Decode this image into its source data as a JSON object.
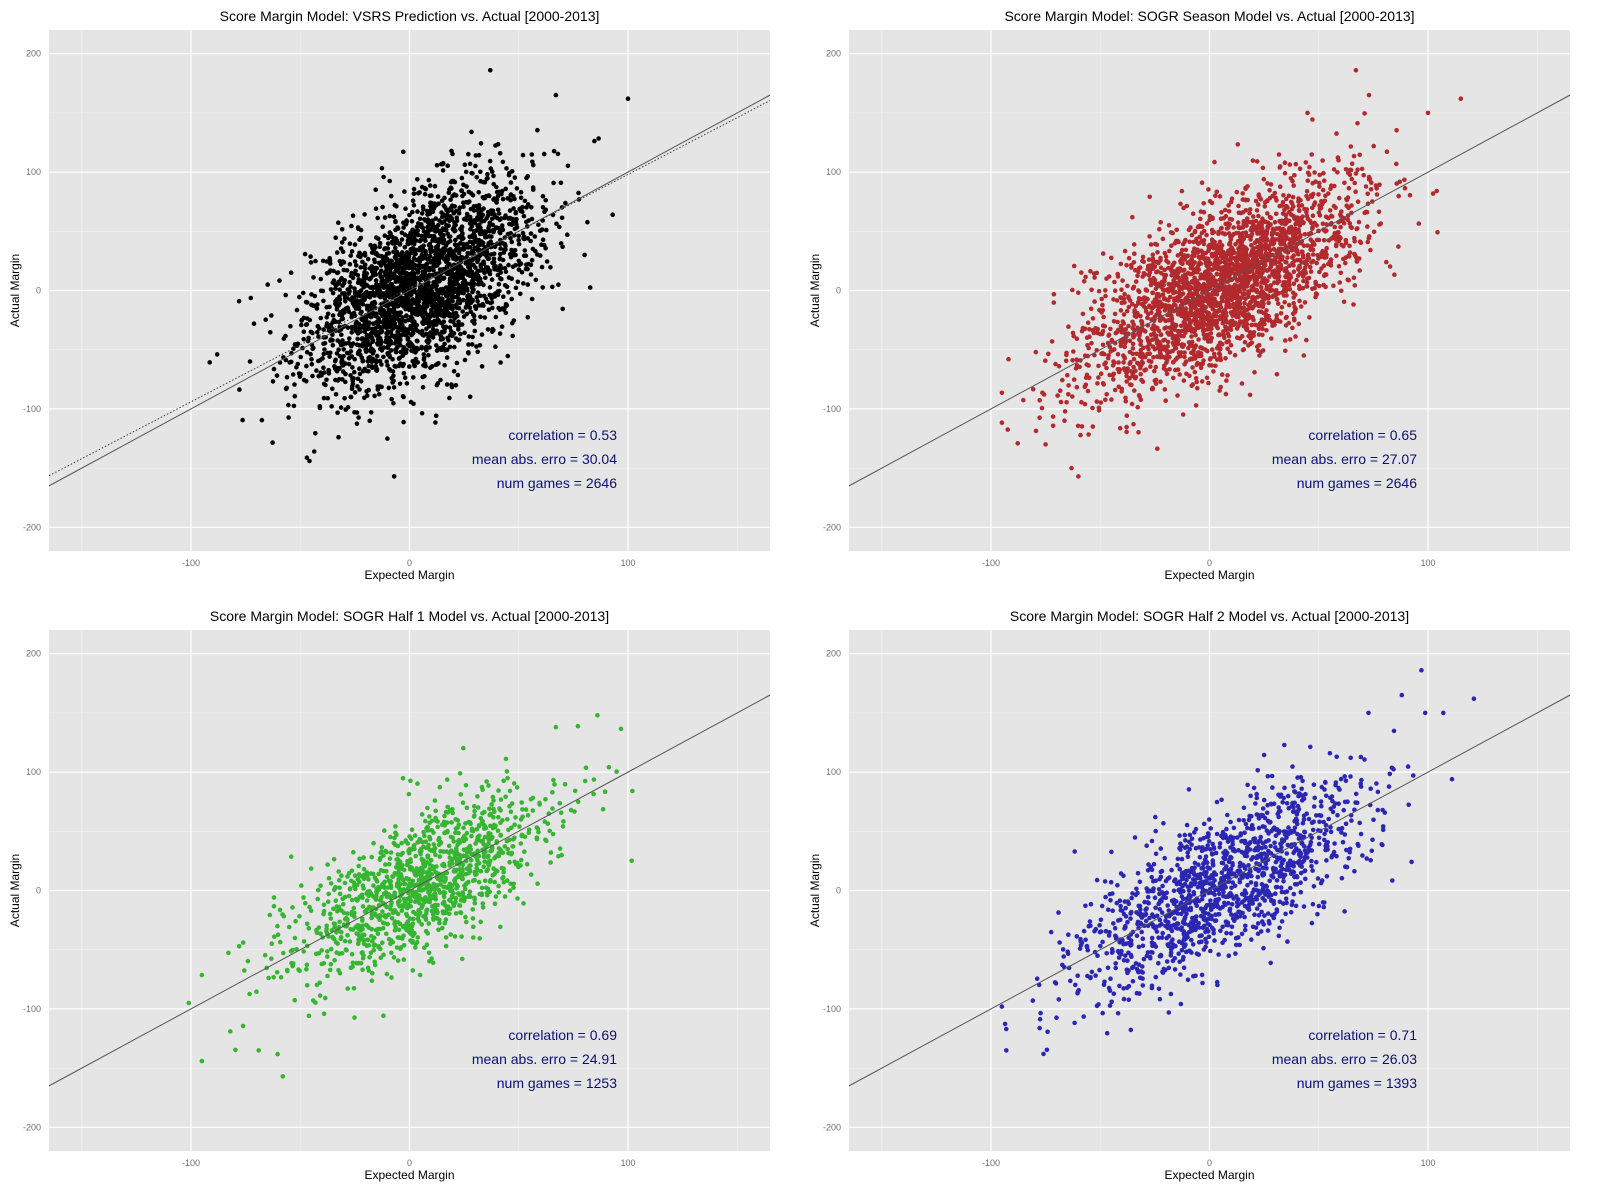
{
  "chart_data": [
    {
      "type": "scatter",
      "title": "Score Margin Model: VSRS Prediction vs. Actual [2000-2013]",
      "xlabel": "Expected Margin",
      "ylabel": "Actual Margin",
      "xlim": [
        -165,
        165
      ],
      "ylim": [
        -220,
        220
      ],
      "xticks": [
        -100,
        0,
        100
      ],
      "yticks": [
        -200,
        -100,
        0,
        100,
        200
      ],
      "grid": true,
      "point_color": "#000000",
      "n_points": 2646,
      "x_sd": 26,
      "y_sd": 43,
      "correlation": 0.53,
      "fit_lines": [
        {
          "style": "solid",
          "color": "#555555",
          "slope": 1.0,
          "intercept": 0
        },
        {
          "style": "dotted",
          "color": "#333333",
          "slope": 0.96,
          "intercept": 2
        }
      ],
      "outliers": [
        [
          37,
          186
        ],
        [
          67,
          165
        ],
        [
          100,
          162
        ],
        [
          -88,
          -54
        ],
        [
          -78,
          -9
        ],
        [
          -7,
          -157
        ],
        [
          -73,
          -60
        ],
        [
          93,
          64
        ]
      ],
      "annotations": {
        "correlation": "0.53",
        "mae": "30.04",
        "games": "2646"
      }
    },
    {
      "type": "scatter",
      "title": "Score Margin Model: SOGR Season Model vs. Actual [2000-2013]",
      "xlabel": "Expected Margin",
      "ylabel": "Actual Margin",
      "xlim": [
        -165,
        165
      ],
      "ylim": [
        -220,
        220
      ],
      "xticks": [
        -100,
        0,
        100
      ],
      "yticks": [
        -200,
        -100,
        0,
        100,
        200
      ],
      "grid": true,
      "point_color": "#b22a2e",
      "n_points": 2646,
      "x_sd": 31,
      "y_sd": 43,
      "correlation": 0.65,
      "fit_lines": [
        {
          "style": "solid",
          "color": "#555555",
          "slope": 1.0,
          "intercept": 0
        }
      ],
      "outliers": [
        [
          67,
          186
        ],
        [
          115,
          162
        ],
        [
          -92,
          -58
        ],
        [
          -75,
          -130
        ],
        [
          -60,
          -157
        ],
        [
          104,
          84
        ],
        [
          100,
          150
        ],
        [
          73,
          165
        ]
      ],
      "annotations": {
        "correlation": "0.65",
        "mae": "27.07",
        "games": "2646"
      }
    },
    {
      "type": "scatter",
      "title": "Score Margin Model: SOGR Half 1 Model vs. Actual [2000-2013]",
      "xlabel": "Expected Margin",
      "ylabel": "Actual Margin",
      "xlim": [
        -165,
        165
      ],
      "ylim": [
        -220,
        220
      ],
      "xticks": [
        -100,
        0,
        100
      ],
      "yticks": [
        -200,
        -100,
        0,
        100,
        200
      ],
      "grid": true,
      "point_color": "#36b531",
      "n_points": 1253,
      "x_sd": 30,
      "y_sd": 40,
      "correlation": 0.69,
      "fit_lines": [
        {
          "style": "solid",
          "color": "#555555",
          "slope": 1.0,
          "intercept": 0
        }
      ],
      "outliers": [
        [
          -101,
          -95
        ],
        [
          -58,
          -157
        ],
        [
          86,
          148
        ],
        [
          67,
          138
        ],
        [
          102,
          84
        ],
        [
          -69,
          -135
        ],
        [
          -82,
          -119
        ]
      ],
      "annotations": {
        "correlation": "0.69",
        "mae": "24.91",
        "games": "1253"
      }
    },
    {
      "type": "scatter",
      "title": "Score Margin Model: SOGR Half 2 Model vs. Actual [2000-2013]",
      "xlabel": "Expected Margin",
      "ylabel": "Actual Margin",
      "xlim": [
        -165,
        165
      ],
      "ylim": [
        -220,
        220
      ],
      "xticks": [
        -100,
        0,
        100
      ],
      "yticks": [
        -200,
        -100,
        0,
        100,
        200
      ],
      "grid": true,
      "point_color": "#2b27b3",
      "n_points": 1393,
      "x_sd": 32,
      "y_sd": 44,
      "correlation": 0.71,
      "fit_lines": [
        {
          "style": "solid",
          "color": "#555555",
          "slope": 1.0,
          "intercept": 0
        }
      ],
      "outliers": [
        [
          97,
          186
        ],
        [
          121,
          162
        ],
        [
          107,
          150
        ],
        [
          88,
          165
        ],
        [
          -93,
          -135
        ],
        [
          -76,
          -138
        ],
        [
          -93,
          -117
        ],
        [
          111,
          94
        ]
      ],
      "annotations": {
        "correlation": "0.71",
        "mae": "26.03",
        "games": "1393"
      }
    }
  ],
  "labels": {
    "correlation_prefix": "correlation =",
    "mae_prefix": "mean abs. erro =",
    "games_prefix": "num games ="
  },
  "colors": {
    "panel_background": "#e5e5e5",
    "grid_major": "#ffffff",
    "annotation_text": "#0c0f78"
  }
}
